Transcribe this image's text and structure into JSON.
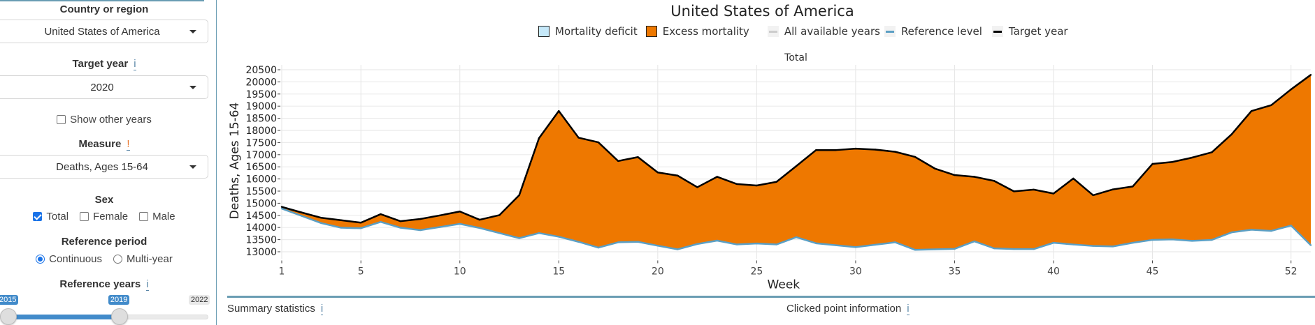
{
  "sidebar": {
    "country_label": "Country or region",
    "country_value": "United States of America",
    "target_year_label": "Target year",
    "target_year_value": "2020",
    "info_glyph": "i",
    "warn_glyph": "!",
    "show_other_years_label": "Show other years",
    "show_other_years_checked": false,
    "measure_label": "Measure",
    "measure_value": "Deaths, Ages 15-64",
    "sex_label": "Sex",
    "sex_options": [
      {
        "label": "Total",
        "checked": true
      },
      {
        "label": "Female",
        "checked": false
      },
      {
        "label": "Male",
        "checked": false
      }
    ],
    "reference_period_label": "Reference period",
    "reference_period_options": [
      {
        "label": "Continuous",
        "selected": true
      },
      {
        "label": "Multi-year",
        "selected": false
      }
    ],
    "reference_years_label": "Reference years",
    "reference_years": {
      "min": 2015,
      "max": 2022,
      "from": 2015,
      "to": 2019,
      "from_label": "2015",
      "to_label": "2019",
      "max_label": "2022"
    }
  },
  "bottom": {
    "summary_label": "Summary statistics",
    "clicked_label": "Clicked point information"
  },
  "colors": {
    "excess": "#ee7800",
    "deficit": "#c6e9fa",
    "reference": "#5b9fc4",
    "target": "#000000",
    "all_years": "#cccccc",
    "accent": "#428bca",
    "divider": "#6a9db3"
  },
  "chart_data": {
    "type": "area",
    "title": "United States of America",
    "panel_title": "Total",
    "xlabel": "Week",
    "ylabel": "Deaths, Ages 15-64",
    "ylim": [
      12700,
      20700
    ],
    "xlim": [
      1,
      53
    ],
    "yticks": [
      13000,
      13500,
      14000,
      14500,
      15000,
      15500,
      16000,
      16500,
      17000,
      17500,
      18000,
      18500,
      19000,
      19500,
      20000,
      20500
    ],
    "xticks": [
      1,
      5,
      10,
      15,
      20,
      25,
      30,
      35,
      40,
      45,
      52
    ],
    "grid": true,
    "legend": {
      "position": "top",
      "entries": [
        "Mortality deficit",
        "Excess mortality",
        "All available years",
        "Reference level",
        "Target year"
      ]
    },
    "x": [
      1,
      2,
      3,
      4,
      5,
      6,
      7,
      8,
      9,
      10,
      11,
      12,
      13,
      14,
      15,
      16,
      17,
      18,
      19,
      20,
      21,
      22,
      23,
      24,
      25,
      26,
      27,
      28,
      29,
      30,
      31,
      32,
      33,
      34,
      35,
      36,
      37,
      38,
      39,
      40,
      41,
      42,
      43,
      44,
      45,
      46,
      47,
      48,
      49,
      50,
      51,
      52,
      53
    ],
    "series": [
      {
        "name": "Target year",
        "values": [
          14850,
          14620,
          14400,
          14300,
          14200,
          14550,
          14260,
          14350,
          14500,
          14660,
          14320,
          14510,
          15330,
          17680,
          18800,
          17700,
          17510,
          16740,
          16900,
          16270,
          16140,
          15660,
          16090,
          15790,
          15730,
          15880,
          16530,
          17190,
          17190,
          17250,
          17210,
          17120,
          16910,
          16430,
          16160,
          16090,
          15920,
          15490,
          15560,
          15400,
          16020,
          15330,
          15570,
          15690,
          16620,
          16700,
          16880,
          17100,
          17840,
          18800,
          19040,
          19690,
          20290
        ]
      },
      {
        "name": "Reference level",
        "values": [
          14780,
          14480,
          14180,
          13990,
          13970,
          14230,
          13990,
          13890,
          14020,
          14150,
          13980,
          13770,
          13560,
          13770,
          13620,
          13410,
          13170,
          13390,
          13410,
          13250,
          13100,
          13320,
          13460,
          13300,
          13340,
          13300,
          13600,
          13350,
          13270,
          13190,
          13290,
          13390,
          13080,
          13100,
          13120,
          13430,
          13140,
          13110,
          13110,
          13370,
          13300,
          13240,
          13220,
          13370,
          13490,
          13510,
          13450,
          13490,
          13800,
          13910,
          13860,
          14080,
          13270
        ]
      }
    ]
  }
}
